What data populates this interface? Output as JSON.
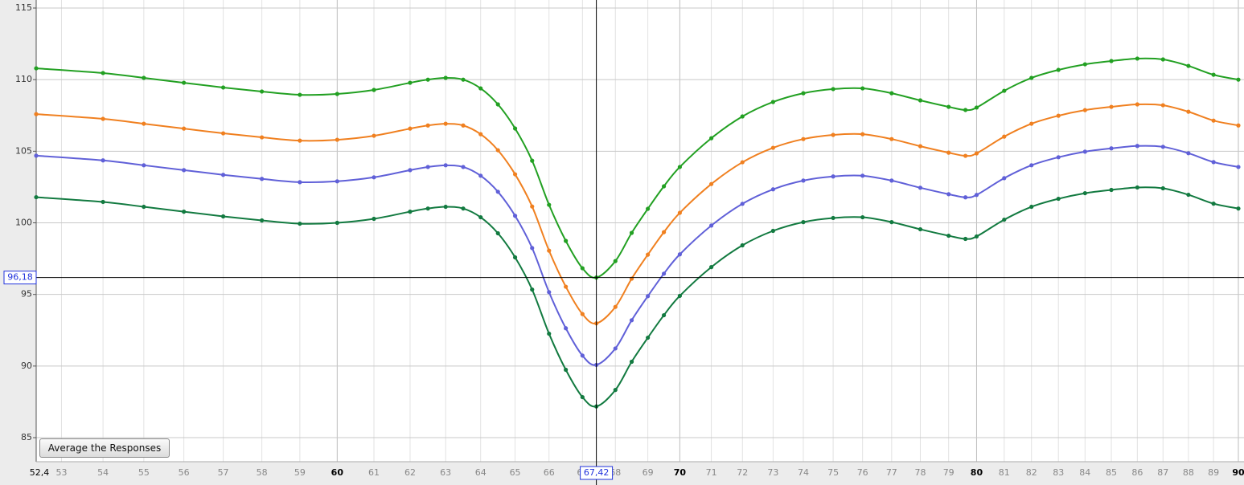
{
  "chart_data": {
    "type": "line",
    "xscale": "log",
    "grid": true,
    "x": [
      52.4,
      54,
      55,
      56,
      57,
      58,
      59,
      60,
      61,
      62,
      62.5,
      63,
      63.5,
      64,
      64.5,
      65,
      65.5,
      66,
      66.5,
      67,
      67.42,
      68,
      68.5,
      69,
      69.5,
      70,
      71,
      72,
      73,
      74,
      75,
      76,
      77,
      78,
      79,
      79.6,
      80,
      81,
      82,
      83,
      84,
      85,
      86,
      87,
      88,
      89,
      90
    ],
    "series": [
      {
        "color": "#22a022",
        "values": [
          110.79,
          110.46,
          110.12,
          109.78,
          109.45,
          109.17,
          108.94,
          109.0,
          109.28,
          109.78,
          110.0,
          110.12,
          110.0,
          109.39,
          108.27,
          106.59,
          104.34,
          101.26,
          98.74,
          96.83,
          96.18,
          97.33,
          99.3,
          100.98,
          102.55,
          103.9,
          105.91,
          107.43,
          108.44,
          109.05,
          109.34,
          109.39,
          109.05,
          108.55,
          108.1,
          107.88,
          108.05,
          109.22,
          110.12,
          110.68,
          111.07,
          111.3,
          111.47,
          111.41,
          110.96,
          110.34,
          110.0
        ]
      },
      {
        "color": "#f08020",
        "values": [
          107.59,
          107.26,
          106.92,
          106.58,
          106.25,
          105.97,
          105.74,
          105.8,
          106.08,
          106.58,
          106.8,
          106.92,
          106.8,
          106.19,
          105.07,
          103.39,
          101.14,
          98.06,
          95.54,
          93.63,
          92.98,
          94.13,
          96.1,
          97.78,
          99.35,
          100.7,
          102.71,
          104.23,
          105.24,
          105.85,
          106.14,
          106.19,
          105.85,
          105.35,
          104.9,
          104.68,
          104.85,
          106.02,
          106.92,
          107.48,
          107.87,
          108.1,
          108.27,
          108.21,
          107.76,
          107.14,
          106.8
        ]
      },
      {
        "color": "#6060d8",
        "values": [
          104.69,
          104.36,
          104.02,
          103.68,
          103.35,
          103.07,
          102.84,
          102.9,
          103.18,
          103.68,
          103.9,
          104.02,
          103.9,
          103.29,
          102.17,
          100.49,
          98.24,
          95.16,
          92.64,
          90.73,
          90.08,
          91.23,
          93.2,
          94.88,
          96.45,
          97.8,
          99.81,
          101.33,
          102.34,
          102.95,
          103.24,
          103.29,
          102.95,
          102.45,
          102.0,
          101.78,
          101.95,
          103.12,
          104.02,
          104.58,
          104.97,
          105.2,
          105.37,
          105.31,
          104.86,
          104.24,
          103.9
        ]
      },
      {
        "color": "#127a40",
        "values": [
          101.79,
          101.46,
          101.12,
          100.78,
          100.45,
          100.17,
          99.94,
          100.0,
          100.28,
          100.78,
          101.0,
          101.12,
          101.0,
          100.39,
          99.27,
          97.59,
          95.34,
          92.26,
          89.74,
          87.83,
          87.18,
          88.33,
          90.3,
          91.98,
          93.55,
          94.9,
          96.91,
          98.43,
          99.44,
          100.05,
          100.34,
          100.39,
          100.05,
          99.55,
          99.1,
          98.88,
          99.05,
          100.22,
          101.12,
          101.68,
          102.07,
          102.3,
          102.47,
          102.41,
          101.96,
          101.34,
          101.0
        ]
      }
    ],
    "xlim": [
      52.4,
      90
    ],
    "ylim": [
      83.32,
      115.56
    ],
    "xticks": [
      {
        "value": 52.4,
        "label": "52,4"
      },
      53,
      54,
      55,
      56,
      57,
      58,
      59,
      60,
      61,
      62,
      63,
      64,
      65,
      66,
      67,
      68,
      69,
      70,
      71,
      72,
      73,
      74,
      75,
      76,
      77,
      78,
      79,
      80,
      81,
      82,
      83,
      84,
      85,
      86,
      87,
      88,
      89,
      90
    ],
    "yticks": [
      85,
      90,
      95,
      100,
      105,
      110,
      115
    ],
    "crosshair": {
      "x": {
        "value": 67.42,
        "label": "67,42"
      },
      "y": {
        "value": 96.18,
        "label": "96,18"
      }
    },
    "button": "Average the Responses"
  }
}
